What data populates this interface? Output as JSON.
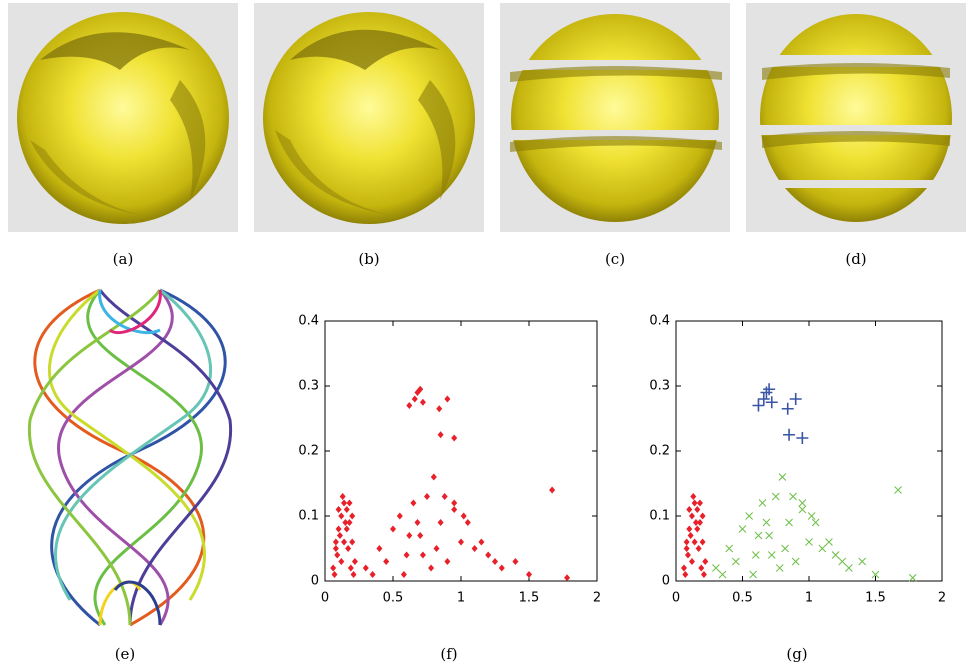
{
  "captions": [
    "(a)",
    "(b)",
    "(c)",
    "(d)",
    "(e)"
  ],
  "chart_data": [
    {
      "type": "scatter",
      "caption": "(f)",
      "xlim": [
        0,
        2
      ],
      "xticks": [
        0,
        0.5,
        1,
        1.5,
        2
      ],
      "ylim": [
        0,
        0.4
      ],
      "yticks": [
        0,
        0.1,
        0.2,
        0.3,
        0.4
      ],
      "series": [
        {
          "color": "#e8202a",
          "marker": "diamond",
          "x": [
            0.06,
            0.08,
            0.1,
            0.12,
            0.14,
            0.16,
            0.18,
            0.2,
            0.22,
            0.07,
            0.09,
            0.11,
            0.13,
            0.15,
            0.17,
            0.19,
            0.21,
            0.1,
            0.14,
            0.18,
            0.12,
            0.16,
            0.2,
            0.08,
            0.3,
            0.4,
            0.5,
            0.55,
            0.6,
            0.65,
            0.7,
            0.75,
            0.8,
            0.85,
            0.9,
            0.95,
            1,
            1.05,
            1.1,
            1.2,
            1.3,
            1.4,
            1.5,
            1.67,
            1.78,
            0.45,
            0.62,
            0.78,
            0.88,
            1.02,
            0.58,
            0.72,
            0.95,
            1.15,
            0.35,
            0.68,
            0.82,
            1.25,
            0.62,
            0.66,
            0.68,
            0.7,
            0.72,
            0.84,
            0.9,
            0.85,
            0.95
          ],
          "values": [
            0.02,
            0.05,
            0.08,
            0.1,
            0.12,
            0.11,
            0.09,
            0.06,
            0.03,
            0.01,
            0.04,
            0.07,
            0.13,
            0.09,
            0.05,
            0.02,
            0.01,
            0.11,
            0.06,
            0.12,
            0.03,
            0.08,
            0.1,
            0.06,
            0.02,
            0.05,
            0.08,
            0.1,
            0.04,
            0.12,
            0.07,
            0.13,
            0.16,
            0.09,
            0.03,
            0.11,
            0.06,
            0.09,
            0.05,
            0.04,
            0.02,
            0.03,
            0.01,
            0.14,
            0.005,
            0.03,
            0.07,
            0.02,
            0.13,
            0.1,
            0.01,
            0.04,
            0.12,
            0.06,
            0.01,
            0.09,
            0.05,
            0.03,
            0.27,
            0.28,
            0.29,
            0.295,
            0.275,
            0.265,
            0.28,
            0.225,
            0.22
          ]
        }
      ]
    },
    {
      "type": "scatter",
      "caption": "(g)",
      "xlim": [
        0,
        2
      ],
      "xticks": [
        0,
        0.5,
        1,
        1.5,
        2
      ],
      "ylim": [
        0,
        0.4
      ],
      "yticks": [
        0,
        0.1,
        0.2,
        0.3,
        0.4
      ],
      "series": [
        {
          "color": "#e8202a",
          "marker": "diamond",
          "x": [
            0.06,
            0.08,
            0.1,
            0.12,
            0.14,
            0.16,
            0.18,
            0.2,
            0.22,
            0.07,
            0.09,
            0.11,
            0.13,
            0.15,
            0.17,
            0.19,
            0.21,
            0.1,
            0.14,
            0.18,
            0.12,
            0.16,
            0.2,
            0.08
          ],
          "values": [
            0.02,
            0.05,
            0.08,
            0.1,
            0.12,
            0.11,
            0.09,
            0.06,
            0.03,
            0.01,
            0.04,
            0.07,
            0.13,
            0.09,
            0.05,
            0.02,
            0.01,
            0.11,
            0.06,
            0.12,
            0.03,
            0.08,
            0.1,
            0.06
          ]
        },
        {
          "color": "#6cbf45",
          "marker": "x",
          "x": [
            0.3,
            0.4,
            0.5,
            0.55,
            0.6,
            0.65,
            0.7,
            0.75,
            0.8,
            0.85,
            0.9,
            0.95,
            1,
            1.05,
            1.1,
            1.2,
            1.3,
            1.4,
            1.5,
            1.67,
            1.78,
            0.45,
            0.62,
            0.78,
            0.88,
            1.02,
            0.58,
            0.72,
            0.95,
            1.15,
            0.35,
            0.68,
            0.82,
            1.25
          ],
          "values": [
            0.02,
            0.05,
            0.08,
            0.1,
            0.04,
            0.12,
            0.07,
            0.13,
            0.16,
            0.09,
            0.03,
            0.11,
            0.06,
            0.09,
            0.05,
            0.04,
            0.02,
            0.03,
            0.01,
            0.14,
            0.005,
            0.03,
            0.07,
            0.02,
            0.13,
            0.1,
            0.01,
            0.04,
            0.12,
            0.06,
            0.01,
            0.09,
            0.05,
            0.03
          ]
        },
        {
          "color": "#3a55a4",
          "marker": "plus",
          "x": [
            0.62,
            0.66,
            0.68,
            0.7,
            0.72,
            0.84,
            0.9,
            0.85,
            0.95
          ],
          "values": [
            0.27,
            0.28,
            0.29,
            0.295,
            0.275,
            0.265,
            0.28,
            0.225,
            0.22
          ]
        }
      ]
    }
  ]
}
